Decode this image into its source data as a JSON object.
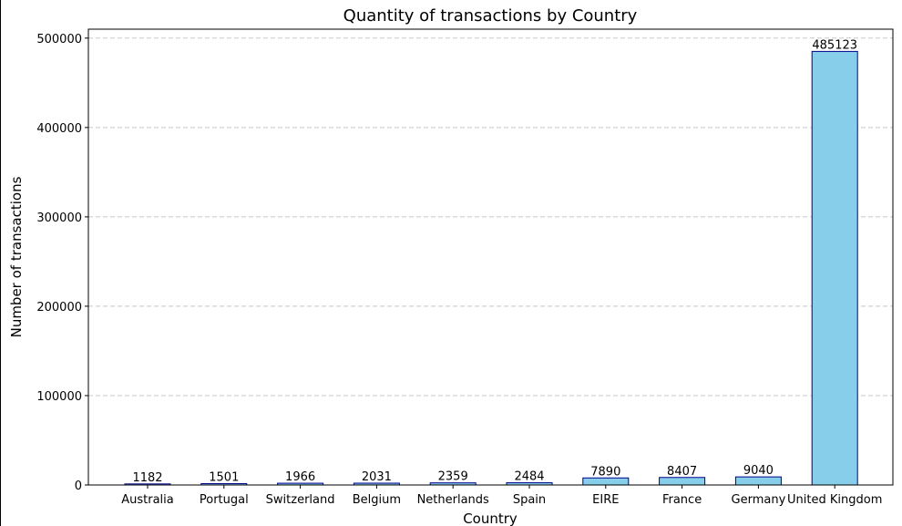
{
  "chart_data": {
    "type": "bar",
    "title": "Quantity of transactions by Country",
    "xlabel": "Country",
    "ylabel": "Number of transactions",
    "categories": [
      "Australia",
      "Portugal",
      "Switzerland",
      "Belgium",
      "Netherlands",
      "Spain",
      "EIRE",
      "France",
      "Germany",
      "United Kingdom"
    ],
    "values": [
      1182,
      1501,
      1966,
      2031,
      2359,
      2484,
      7890,
      8407,
      9040,
      485123
    ],
    "data_labels": [
      "1182",
      "1501",
      "1966",
      "2031",
      "2359",
      "2484",
      "7890",
      "8407",
      "9040",
      "485123"
    ],
    "ylim": [
      0,
      510000
    ],
    "yticks": [
      0,
      100000,
      200000,
      300000,
      400000,
      500000
    ],
    "ytick_labels": [
      "0",
      "100000",
      "200000",
      "300000",
      "400000",
      "500000"
    ],
    "grid": "y-dashed",
    "colors": {
      "bar_fill": "#87ceeb",
      "bar_edge": "#00008b",
      "grid": "#c8c8c8",
      "axis": "#000000"
    }
  }
}
